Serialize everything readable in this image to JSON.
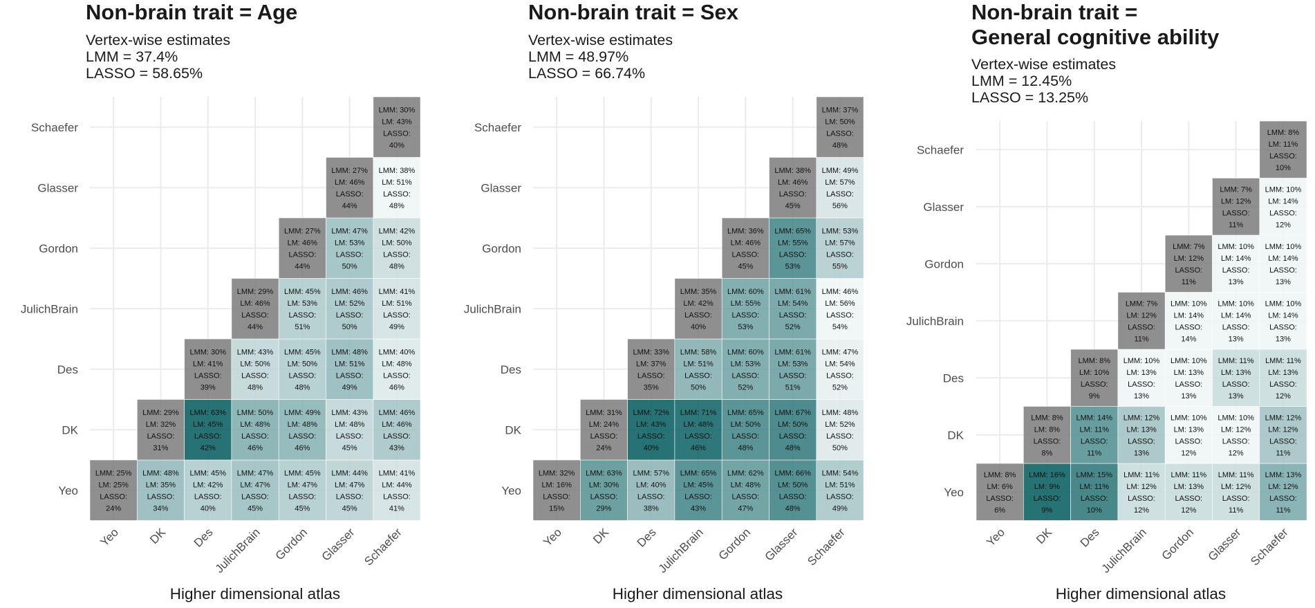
{
  "xlabel": "Higher dimensional atlas",
  "atlases": [
    "Yeo",
    "DK",
    "Des",
    "JulichBrain",
    "Gordon",
    "Glasser",
    "Schaefer"
  ],
  "colors": {
    "diagonal": "#7b7b7b",
    "low": "#eef4f4",
    "high": "#00595d",
    "grid": "#ebebeb",
    "axis_text": "#4d4d4d"
  },
  "panels": [
    {
      "title": "Non-brain trait = Age",
      "subtitle_lines": [
        "Vertex-wise estimates",
        "LMM = 37.4%",
        "LASSO = 58.65%"
      ]
    },
    {
      "title": "Non-brain trait = Sex",
      "subtitle_lines": [
        "Vertex-wise estimates",
        "LMM = 48.97%",
        "LASSO = 66.74%"
      ]
    },
    {
      "title": "Non-brain trait =\nGeneral cognitive ability",
      "subtitle_lines": [
        "Vertex-wise estimates",
        "LMM = 12.45%",
        "LASSO = 13.25%"
      ]
    }
  ],
  "chart_data": [
    {
      "type": "heatmap",
      "title": "Non-brain trait = Age",
      "xlabel": "Higher dimensional atlas",
      "ylabel": "",
      "x_categories": [
        "Yeo",
        "DK",
        "Des",
        "JulichBrain",
        "Gordon",
        "Glasser",
        "Schaefer"
      ],
      "y_categories": [
        "Yeo",
        "DK",
        "Des",
        "JulichBrain",
        "Gordon",
        "Glasser",
        "Schaefer"
      ],
      "cells": [
        {
          "x": "Yeo",
          "y": "Yeo",
          "LMM": 25,
          "LM": 25,
          "LASSO": 24
        },
        {
          "x": "DK",
          "y": "Yeo",
          "LMM": 48,
          "LM": 35,
          "LASSO": 34
        },
        {
          "x": "Des",
          "y": "Yeo",
          "LMM": 45,
          "LM": 42,
          "LASSO": 40
        },
        {
          "x": "JulichBrain",
          "y": "Yeo",
          "LMM": 47,
          "LM": 47,
          "LASSO": 45
        },
        {
          "x": "Gordon",
          "y": "Yeo",
          "LMM": 45,
          "LM": 47,
          "LASSO": 45
        },
        {
          "x": "Glasser",
          "y": "Yeo",
          "LMM": 44,
          "LM": 47,
          "LASSO": 45
        },
        {
          "x": "Schaefer",
          "y": "Yeo",
          "LMM": 41,
          "LM": 44,
          "LASSO": 41
        },
        {
          "x": "DK",
          "y": "DK",
          "LMM": 29,
          "LM": 32,
          "LASSO": 31
        },
        {
          "x": "Des",
          "y": "DK",
          "LMM": 63,
          "LM": 45,
          "LASSO": 42
        },
        {
          "x": "JulichBrain",
          "y": "DK",
          "LMM": 50,
          "LM": 48,
          "LASSO": 46
        },
        {
          "x": "Gordon",
          "y": "DK",
          "LMM": 49,
          "LM": 48,
          "LASSO": 46
        },
        {
          "x": "Glasser",
          "y": "DK",
          "LMM": 43,
          "LM": 48,
          "LASSO": 45
        },
        {
          "x": "Schaefer",
          "y": "DK",
          "LMM": 46,
          "LM": 46,
          "LASSO": 43
        },
        {
          "x": "Des",
          "y": "Des",
          "LMM": 30,
          "LM": 41,
          "LASSO": 39
        },
        {
          "x": "JulichBrain",
          "y": "Des",
          "LMM": 43,
          "LM": 50,
          "LASSO": 48
        },
        {
          "x": "Gordon",
          "y": "Des",
          "LMM": 45,
          "LM": 50,
          "LASSO": 48
        },
        {
          "x": "Glasser",
          "y": "Des",
          "LMM": 48,
          "LM": 51,
          "LASSO": 49
        },
        {
          "x": "Schaefer",
          "y": "Des",
          "LMM": 40,
          "LM": 48,
          "LASSO": 46
        },
        {
          "x": "JulichBrain",
          "y": "JulichBrain",
          "LMM": 29,
          "LM": 46,
          "LASSO": 44
        },
        {
          "x": "Gordon",
          "y": "JulichBrain",
          "LMM": 45,
          "LM": 53,
          "LASSO": 51
        },
        {
          "x": "Glasser",
          "y": "JulichBrain",
          "LMM": 46,
          "LM": 52,
          "LASSO": 50
        },
        {
          "x": "Schaefer",
          "y": "JulichBrain",
          "LMM": 41,
          "LM": 51,
          "LASSO": 49
        },
        {
          "x": "Gordon",
          "y": "Gordon",
          "LMM": 27,
          "LM": 46,
          "LASSO": 44
        },
        {
          "x": "Glasser",
          "y": "Gordon",
          "LMM": 47,
          "LM": 53,
          "LASSO": 50
        },
        {
          "x": "Schaefer",
          "y": "Gordon",
          "LMM": 42,
          "LM": 50,
          "LASSO": 48
        },
        {
          "x": "Glasser",
          "y": "Glasser",
          "LMM": 27,
          "LM": 46,
          "LASSO": 44
        },
        {
          "x": "Schaefer",
          "y": "Glasser",
          "LMM": 38,
          "LM": 51,
          "LASSO": 48
        },
        {
          "x": "Schaefer",
          "y": "Schaefer",
          "LMM": 30,
          "LM": 43,
          "LASSO": 40
        }
      ]
    },
    {
      "type": "heatmap",
      "title": "Non-brain trait = Sex",
      "xlabel": "Higher dimensional atlas",
      "ylabel": "",
      "x_categories": [
        "Yeo",
        "DK",
        "Des",
        "JulichBrain",
        "Gordon",
        "Glasser",
        "Schaefer"
      ],
      "y_categories": [
        "Yeo",
        "DK",
        "Des",
        "JulichBrain",
        "Gordon",
        "Glasser",
        "Schaefer"
      ],
      "cells": [
        {
          "x": "Yeo",
          "y": "Yeo",
          "LMM": 32,
          "LM": 16,
          "LASSO": 15
        },
        {
          "x": "DK",
          "y": "Yeo",
          "LMM": 63,
          "LM": 30,
          "LASSO": 29
        },
        {
          "x": "Des",
          "y": "Yeo",
          "LMM": 57,
          "LM": 40,
          "LASSO": 38
        },
        {
          "x": "JulichBrain",
          "y": "Yeo",
          "LMM": 65,
          "LM": 45,
          "LASSO": 43
        },
        {
          "x": "Gordon",
          "y": "Yeo",
          "LMM": 62,
          "LM": 48,
          "LASSO": 47
        },
        {
          "x": "Glasser",
          "y": "Yeo",
          "LMM": 66,
          "LM": 50,
          "LASSO": 48
        },
        {
          "x": "Schaefer",
          "y": "Yeo",
          "LMM": 54,
          "LM": 51,
          "LASSO": 49
        },
        {
          "x": "DK",
          "y": "DK",
          "LMM": 31,
          "LM": 24,
          "LASSO": 24
        },
        {
          "x": "Des",
          "y": "DK",
          "LMM": 72,
          "LM": 43,
          "LASSO": 40
        },
        {
          "x": "JulichBrain",
          "y": "DK",
          "LMM": 71,
          "LM": 48,
          "LASSO": 46
        },
        {
          "x": "Gordon",
          "y": "DK",
          "LMM": 65,
          "LM": 50,
          "LASSO": 48
        },
        {
          "x": "Glasser",
          "y": "DK",
          "LMM": 67,
          "LM": 50,
          "LASSO": 48
        },
        {
          "x": "Schaefer",
          "y": "DK",
          "LMM": 48,
          "LM": 52,
          "LASSO": 50
        },
        {
          "x": "Des",
          "y": "Des",
          "LMM": 33,
          "LM": 37,
          "LASSO": 35
        },
        {
          "x": "JulichBrain",
          "y": "Des",
          "LMM": 58,
          "LM": 51,
          "LASSO": 50
        },
        {
          "x": "Gordon",
          "y": "Des",
          "LMM": 60,
          "LM": 53,
          "LASSO": 52
        },
        {
          "x": "Glasser",
          "y": "Des",
          "LMM": 61,
          "LM": 53,
          "LASSO": 51
        },
        {
          "x": "Schaefer",
          "y": "Des",
          "LMM": 47,
          "LM": 54,
          "LASSO": 52
        },
        {
          "x": "JulichBrain",
          "y": "JulichBrain",
          "LMM": 35,
          "LM": 42,
          "LASSO": 40
        },
        {
          "x": "Gordon",
          "y": "JulichBrain",
          "LMM": 60,
          "LM": 55,
          "LASSO": 53
        },
        {
          "x": "Glasser",
          "y": "JulichBrain",
          "LMM": 61,
          "LM": 54,
          "LASSO": 52
        },
        {
          "x": "Schaefer",
          "y": "JulichBrain",
          "LMM": 46,
          "LM": 56,
          "LASSO": 54
        },
        {
          "x": "Gordon",
          "y": "Gordon",
          "LMM": 36,
          "LM": 46,
          "LASSO": 45
        },
        {
          "x": "Glasser",
          "y": "Gordon",
          "LMM": 65,
          "LM": 55,
          "LASSO": 53
        },
        {
          "x": "Schaefer",
          "y": "Gordon",
          "LMM": 53,
          "LM": 57,
          "LASSO": 55
        },
        {
          "x": "Glasser",
          "y": "Glasser",
          "LMM": 38,
          "LM": 46,
          "LASSO": 45
        },
        {
          "x": "Schaefer",
          "y": "Glasser",
          "LMM": 49,
          "LM": 57,
          "LASSO": 56
        },
        {
          "x": "Schaefer",
          "y": "Schaefer",
          "LMM": 37,
          "LM": 50,
          "LASSO": 48
        }
      ]
    },
    {
      "type": "heatmap",
      "title": "Non-brain trait = General cognitive ability",
      "xlabel": "Higher dimensional atlas",
      "ylabel": "",
      "x_categories": [
        "Yeo",
        "DK",
        "Des",
        "JulichBrain",
        "Gordon",
        "Glasser",
        "Schaefer"
      ],
      "y_categories": [
        "Yeo",
        "DK",
        "Des",
        "JulichBrain",
        "Gordon",
        "Glasser",
        "Schaefer"
      ],
      "cells": [
        {
          "x": "Yeo",
          "y": "Yeo",
          "LMM": 8,
          "LM": 6,
          "LASSO": 6
        },
        {
          "x": "DK",
          "y": "Yeo",
          "LMM": 16,
          "LM": 9,
          "LASSO": 9
        },
        {
          "x": "Des",
          "y": "Yeo",
          "LMM": 15,
          "LM": 11,
          "LASSO": 10
        },
        {
          "x": "JulichBrain",
          "y": "Yeo",
          "LMM": 11,
          "LM": 12,
          "LASSO": 12
        },
        {
          "x": "Gordon",
          "y": "Yeo",
          "LMM": 11,
          "LM": 13,
          "LASSO": 12
        },
        {
          "x": "Glasser",
          "y": "Yeo",
          "LMM": 11,
          "LM": 12,
          "LASSO": 11
        },
        {
          "x": "Schaefer",
          "y": "Yeo",
          "LMM": 13,
          "LM": 12,
          "LASSO": 11
        },
        {
          "x": "DK",
          "y": "DK",
          "LMM": 8,
          "LM": 8,
          "LASSO": 8
        },
        {
          "x": "Des",
          "y": "DK",
          "LMM": 14,
          "LM": 11,
          "LASSO": 11
        },
        {
          "x": "JulichBrain",
          "y": "DK",
          "LMM": 12,
          "LM": 13,
          "LASSO": 13
        },
        {
          "x": "Gordon",
          "y": "DK",
          "LMM": 10,
          "LM": 13,
          "LASSO": 12
        },
        {
          "x": "Glasser",
          "y": "DK",
          "LMM": 10,
          "LM": 12,
          "LASSO": 12
        },
        {
          "x": "Schaefer",
          "y": "DK",
          "LMM": 12,
          "LM": 12,
          "LASSO": 11
        },
        {
          "x": "Des",
          "y": "Des",
          "LMM": 8,
          "LM": 10,
          "LASSO": 9
        },
        {
          "x": "JulichBrain",
          "y": "Des",
          "LMM": 10,
          "LM": 13,
          "LASSO": 13
        },
        {
          "x": "Gordon",
          "y": "Des",
          "LMM": 10,
          "LM": 13,
          "LASSO": 13
        },
        {
          "x": "Glasser",
          "y": "Des",
          "LMM": 11,
          "LM": 13,
          "LASSO": 13
        },
        {
          "x": "Schaefer",
          "y": "Des",
          "LMM": 11,
          "LM": 13,
          "LASSO": 12
        },
        {
          "x": "JulichBrain",
          "y": "JulichBrain",
          "LMM": 7,
          "LM": 12,
          "LASSO": 11
        },
        {
          "x": "Gordon",
          "y": "JulichBrain",
          "LMM": 10,
          "LM": 14,
          "LASSO": 14
        },
        {
          "x": "Glasser",
          "y": "JulichBrain",
          "LMM": 10,
          "LM": 14,
          "LASSO": 13
        },
        {
          "x": "Schaefer",
          "y": "JulichBrain",
          "LMM": 10,
          "LM": 14,
          "LASSO": 13
        },
        {
          "x": "Gordon",
          "y": "Gordon",
          "LMM": 7,
          "LM": 12,
          "LASSO": 11
        },
        {
          "x": "Glasser",
          "y": "Gordon",
          "LMM": 10,
          "LM": 14,
          "LASSO": 13
        },
        {
          "x": "Schaefer",
          "y": "Gordon",
          "LMM": 10,
          "LM": 14,
          "LASSO": 13
        },
        {
          "x": "Glasser",
          "y": "Glasser",
          "LMM": 7,
          "LM": 12,
          "LASSO": 11
        },
        {
          "x": "Schaefer",
          "y": "Glasser",
          "LMM": 10,
          "LM": 14,
          "LASSO": 12
        },
        {
          "x": "Schaefer",
          "y": "Schaefer",
          "LMM": 8,
          "LM": 11,
          "LASSO": 10
        }
      ]
    }
  ]
}
